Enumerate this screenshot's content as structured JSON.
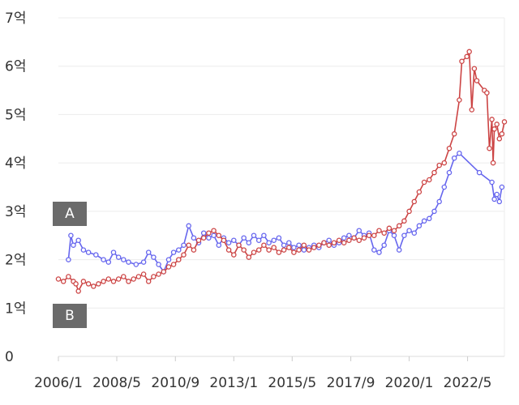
{
  "chart_data": {
    "type": "line",
    "title": "",
    "xlabel": "",
    "ylabel": "",
    "y_ticks": [
      {
        "value": 0,
        "label": "0"
      },
      {
        "value": 1,
        "label": "1억"
      },
      {
        "value": 2,
        "label": "2억"
      },
      {
        "value": 3,
        "label": "3억"
      },
      {
        "value": 4,
        "label": "4억"
      },
      {
        "value": 5,
        "label": "5억"
      },
      {
        "value": 6,
        "label": "6억"
      },
      {
        "value": 7,
        "label": "7억"
      }
    ],
    "x_ticks": [
      {
        "value": 2006.0,
        "label": "2006/1"
      },
      {
        "value": 2008.33,
        "label": "2008/5"
      },
      {
        "value": 2010.67,
        "label": "2010/9"
      },
      {
        "value": 2013.0,
        "label": "2013/1"
      },
      {
        "value": 2015.33,
        "label": "2015/5"
      },
      {
        "value": 2017.67,
        "label": "2017/9"
      },
      {
        "value": 2020.0,
        "label": "2020/1"
      },
      {
        "value": 2022.33,
        "label": "2022/5"
      }
    ],
    "xlim": [
      2006.0,
      2023.8
    ],
    "ylim": [
      0,
      7
    ],
    "grid": true,
    "legend": "left",
    "series": [
      {
        "name": "A",
        "color": "#6666ee",
        "points": [
          [
            2006.4,
            2.0
          ],
          [
            2006.5,
            2.5
          ],
          [
            2006.6,
            2.3
          ],
          [
            2006.8,
            2.4
          ],
          [
            2007.0,
            2.2
          ],
          [
            2007.2,
            2.15
          ],
          [
            2007.5,
            2.1
          ],
          [
            2007.8,
            2.0
          ],
          [
            2008.0,
            1.95
          ],
          [
            2008.2,
            2.15
          ],
          [
            2008.4,
            2.05
          ],
          [
            2008.6,
            2.0
          ],
          [
            2008.8,
            1.95
          ],
          [
            2009.1,
            1.9
          ],
          [
            2009.4,
            1.95
          ],
          [
            2009.6,
            2.15
          ],
          [
            2009.8,
            2.05
          ],
          [
            2010.0,
            1.9
          ],
          [
            2010.2,
            1.75
          ],
          [
            2010.4,
            2.0
          ],
          [
            2010.6,
            2.15
          ],
          [
            2010.8,
            2.2
          ],
          [
            2011.0,
            2.3
          ],
          [
            2011.2,
            2.7
          ],
          [
            2011.4,
            2.45
          ],
          [
            2011.6,
            2.35
          ],
          [
            2011.8,
            2.55
          ],
          [
            2012.0,
            2.45
          ],
          [
            2012.2,
            2.5
          ],
          [
            2012.4,
            2.3
          ],
          [
            2012.6,
            2.45
          ],
          [
            2012.8,
            2.35
          ],
          [
            2013.0,
            2.4
          ],
          [
            2013.2,
            2.3
          ],
          [
            2013.4,
            2.45
          ],
          [
            2013.6,
            2.35
          ],
          [
            2013.8,
            2.5
          ],
          [
            2014.0,
            2.4
          ],
          [
            2014.2,
            2.5
          ],
          [
            2014.4,
            2.35
          ],
          [
            2014.6,
            2.4
          ],
          [
            2014.8,
            2.45
          ],
          [
            2015.0,
            2.3
          ],
          [
            2015.2,
            2.35
          ],
          [
            2015.4,
            2.25
          ],
          [
            2015.6,
            2.3
          ],
          [
            2015.8,
            2.2
          ],
          [
            2016.0,
            2.25
          ],
          [
            2016.2,
            2.3
          ],
          [
            2016.4,
            2.25
          ],
          [
            2016.6,
            2.35
          ],
          [
            2016.8,
            2.4
          ],
          [
            2017.0,
            2.3
          ],
          [
            2017.2,
            2.35
          ],
          [
            2017.4,
            2.45
          ],
          [
            2017.6,
            2.5
          ],
          [
            2017.8,
            2.45
          ],
          [
            2018.0,
            2.6
          ],
          [
            2018.2,
            2.5
          ],
          [
            2018.4,
            2.55
          ],
          [
            2018.6,
            2.2
          ],
          [
            2018.8,
            2.15
          ],
          [
            2019.0,
            2.3
          ],
          [
            2019.2,
            2.6
          ],
          [
            2019.4,
            2.5
          ],
          [
            2019.6,
            2.2
          ],
          [
            2019.8,
            2.5
          ],
          [
            2020.0,
            2.6
          ],
          [
            2020.2,
            2.55
          ],
          [
            2020.4,
            2.7
          ],
          [
            2020.6,
            2.8
          ],
          [
            2020.8,
            2.85
          ],
          [
            2021.0,
            3.0
          ],
          [
            2021.2,
            3.2
          ],
          [
            2021.4,
            3.5
          ],
          [
            2021.6,
            3.8
          ],
          [
            2021.8,
            4.1
          ],
          [
            2022.0,
            4.2
          ],
          [
            2022.8,
            3.8
          ],
          [
            2023.3,
            3.6
          ],
          [
            2023.4,
            3.25
          ],
          [
            2023.5,
            3.35
          ],
          [
            2023.6,
            3.2
          ],
          [
            2023.7,
            3.5
          ]
        ]
      },
      {
        "name": "B",
        "color": "#cc4444",
        "points": [
          [
            2006.0,
            1.6
          ],
          [
            2006.2,
            1.55
          ],
          [
            2006.4,
            1.65
          ],
          [
            2006.6,
            1.55
          ],
          [
            2006.7,
            1.5
          ],
          [
            2006.8,
            1.35
          ],
          [
            2007.0,
            1.55
          ],
          [
            2007.2,
            1.5
          ],
          [
            2007.4,
            1.45
          ],
          [
            2007.6,
            1.5
          ],
          [
            2007.8,
            1.55
          ],
          [
            2008.0,
            1.6
          ],
          [
            2008.2,
            1.55
          ],
          [
            2008.4,
            1.6
          ],
          [
            2008.6,
            1.65
          ],
          [
            2008.8,
            1.55
          ],
          [
            2009.0,
            1.6
          ],
          [
            2009.2,
            1.65
          ],
          [
            2009.4,
            1.7
          ],
          [
            2009.6,
            1.55
          ],
          [
            2009.8,
            1.65
          ],
          [
            2010.0,
            1.7
          ],
          [
            2010.2,
            1.75
          ],
          [
            2010.4,
            1.85
          ],
          [
            2010.6,
            1.9
          ],
          [
            2010.8,
            2.0
          ],
          [
            2011.0,
            2.1
          ],
          [
            2011.2,
            2.3
          ],
          [
            2011.4,
            2.2
          ],
          [
            2011.6,
            2.4
          ],
          [
            2011.8,
            2.45
          ],
          [
            2012.0,
            2.55
          ],
          [
            2012.2,
            2.6
          ],
          [
            2012.4,
            2.5
          ],
          [
            2012.6,
            2.4
          ],
          [
            2012.8,
            2.2
          ],
          [
            2013.0,
            2.1
          ],
          [
            2013.2,
            2.3
          ],
          [
            2013.4,
            2.2
          ],
          [
            2013.6,
            2.05
          ],
          [
            2013.8,
            2.15
          ],
          [
            2014.0,
            2.2
          ],
          [
            2014.2,
            2.3
          ],
          [
            2014.4,
            2.2
          ],
          [
            2014.6,
            2.25
          ],
          [
            2014.8,
            2.15
          ],
          [
            2015.0,
            2.2
          ],
          [
            2015.2,
            2.25
          ],
          [
            2015.4,
            2.15
          ],
          [
            2015.6,
            2.2
          ],
          [
            2015.8,
            2.3
          ],
          [
            2016.0,
            2.2
          ],
          [
            2016.2,
            2.25
          ],
          [
            2016.4,
            2.3
          ],
          [
            2016.6,
            2.35
          ],
          [
            2016.8,
            2.3
          ],
          [
            2017.0,
            2.35
          ],
          [
            2017.2,
            2.4
          ],
          [
            2017.4,
            2.35
          ],
          [
            2017.6,
            2.4
          ],
          [
            2017.8,
            2.45
          ],
          [
            2018.0,
            2.4
          ],
          [
            2018.2,
            2.45
          ],
          [
            2018.4,
            2.5
          ],
          [
            2018.6,
            2.5
          ],
          [
            2018.8,
            2.6
          ],
          [
            2019.0,
            2.55
          ],
          [
            2019.2,
            2.65
          ],
          [
            2019.4,
            2.6
          ],
          [
            2019.6,
            2.7
          ],
          [
            2019.8,
            2.8
          ],
          [
            2020.0,
            3.0
          ],
          [
            2020.2,
            3.2
          ],
          [
            2020.4,
            3.4
          ],
          [
            2020.6,
            3.6
          ],
          [
            2020.8,
            3.65
          ],
          [
            2021.0,
            3.8
          ],
          [
            2021.2,
            3.95
          ],
          [
            2021.4,
            4.0
          ],
          [
            2021.6,
            4.3
          ],
          [
            2021.8,
            4.6
          ],
          [
            2022.0,
            5.3
          ],
          [
            2022.1,
            6.1
          ],
          [
            2022.3,
            6.2
          ],
          [
            2022.4,
            6.3
          ],
          [
            2022.5,
            5.1
          ],
          [
            2022.6,
            5.95
          ],
          [
            2022.7,
            5.7
          ],
          [
            2023.0,
            5.5
          ],
          [
            2023.1,
            5.45
          ],
          [
            2023.2,
            4.3
          ],
          [
            2023.3,
            4.9
          ],
          [
            2023.35,
            4.0
          ],
          [
            2023.4,
            4.7
          ],
          [
            2023.5,
            4.8
          ],
          [
            2023.6,
            4.5
          ],
          [
            2023.7,
            4.6
          ],
          [
            2023.8,
            4.85
          ]
        ]
      }
    ]
  }
}
